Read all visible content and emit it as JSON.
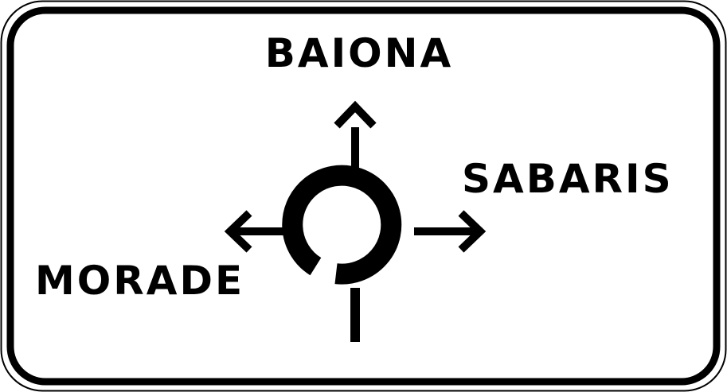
{
  "sign": {
    "destinations": {
      "north": "BAIONA",
      "east": "SABARIS",
      "west": "MORADE"
    },
    "symbol": "roundabout-icon",
    "colors": {
      "background": "#ffffff",
      "legend": "#000000"
    }
  }
}
